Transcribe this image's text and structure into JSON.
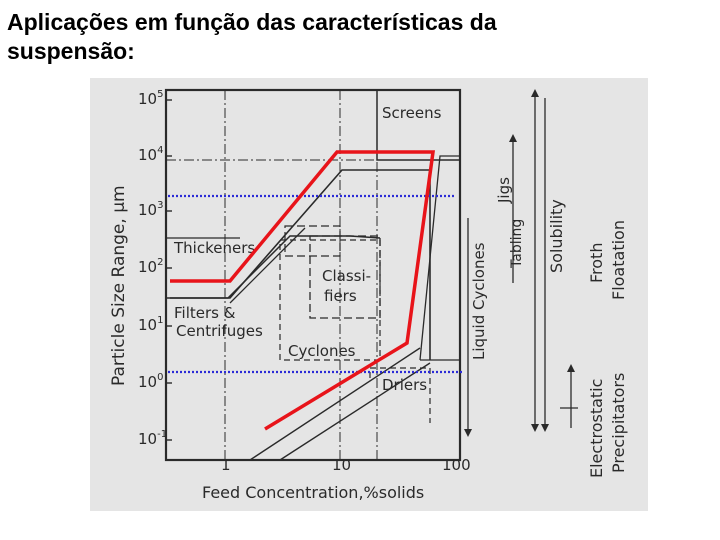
{
  "title": {
    "line1": "Aplicações em função das características da",
    "line2": "suspensão:"
  },
  "diagram": {
    "y_axis_label": "Particle Size Range, µm",
    "x_axis_label": "Feed Concentration,%solids",
    "y_ticks": [
      {
        "base": "10",
        "exp": "5"
      },
      {
        "base": "10",
        "exp": "4"
      },
      {
        "base": "10",
        "exp": "3"
      },
      {
        "base": "10",
        "exp": "2"
      },
      {
        "base": "10",
        "exp": "1"
      },
      {
        "base": "10",
        "exp": "0"
      },
      {
        "base": "10",
        "exp": "-1"
      }
    ],
    "x_ticks": [
      "1",
      "10",
      "100"
    ],
    "regions": {
      "screens": "Screens",
      "thickeners": "Thickeners",
      "classifiers_1": "Classi-",
      "classifiers_2": "fiers",
      "filters_1": "Filters &",
      "filters_2": "Centrifuges",
      "cyclones": "Cyclones",
      "driers": "Driers"
    },
    "side_labels": {
      "jigs": "Jigs",
      "tabling": "Tabling",
      "liquid_cyclones": "Liquid Cyclones",
      "solubility": "Solubility",
      "froth_1": "Froth",
      "froth_2": "Floatation",
      "electro_1": "Electrostatic",
      "electro_2": "Precipitators"
    },
    "colors": {
      "red_outline": "#e8141a",
      "blue_dotted": "#2b2bd6",
      "scan_background": "#e9e9e9",
      "ink": "#2a2a2a"
    }
  }
}
